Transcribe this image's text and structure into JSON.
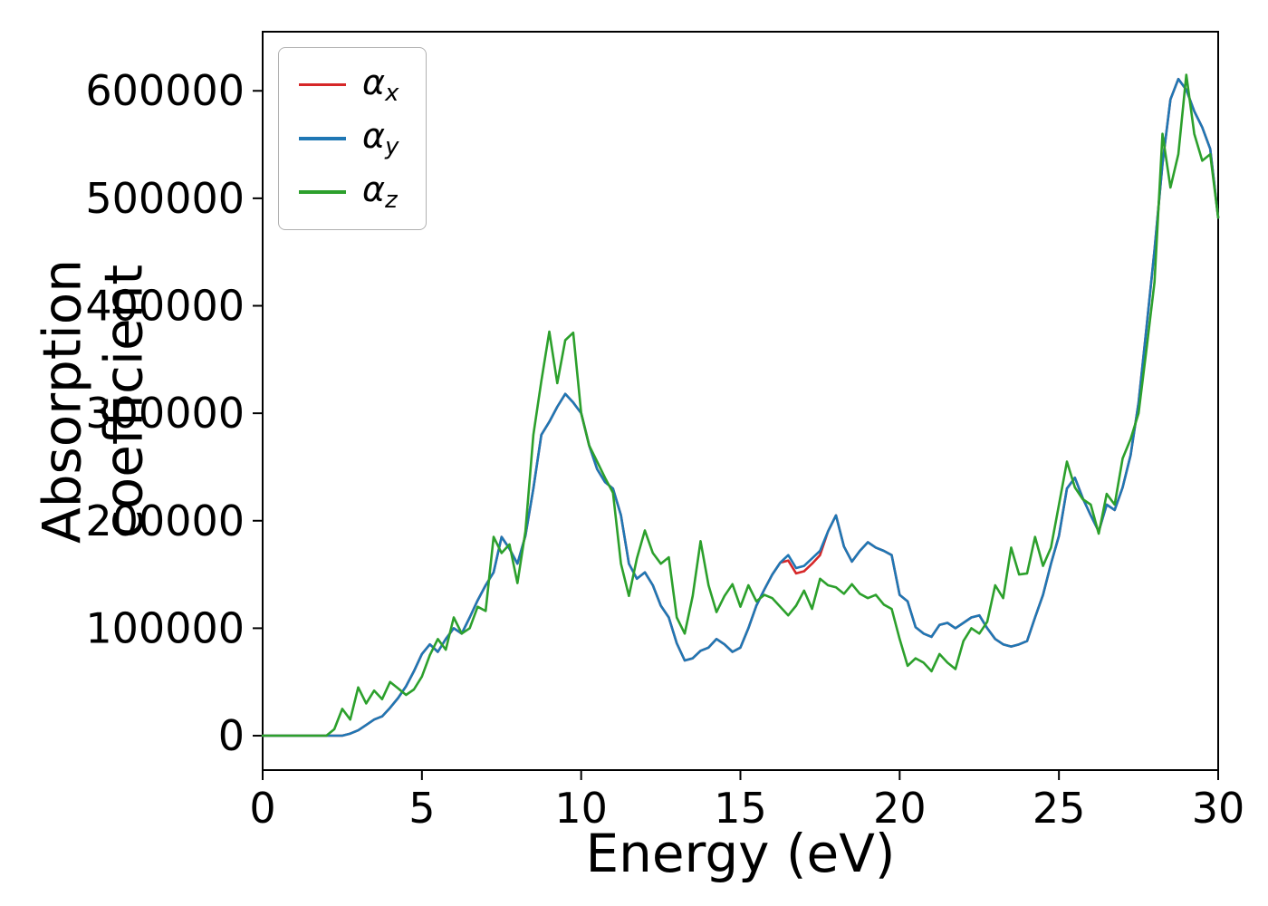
{
  "chart_data": {
    "type": "line",
    "title": "",
    "xlabel": "Energy (eV)",
    "ylabel": "Absorption coefficient",
    "xlim": [
      0,
      30
    ],
    "ylim": [
      -32000,
      655000
    ],
    "xticks": [
      0,
      5,
      10,
      15,
      20,
      25,
      30
    ],
    "yticks": [
      0,
      100000,
      200000,
      300000,
      400000,
      500000,
      600000
    ],
    "grid": false,
    "legend_position": "upper left",
    "value_scale": 1000,
    "x_start": 0,
    "x_step": 0.25,
    "series": [
      {
        "name": "alpha-x",
        "legend_base": "α",
        "legend_sub": "x",
        "color": "#d62728",
        "values_k": [
          0,
          0,
          0,
          0,
          0,
          0,
          0,
          0,
          0,
          0,
          0,
          2,
          5,
          10,
          15,
          18,
          26,
          35,
          46,
          60,
          76,
          85,
          78,
          90,
          100,
          95,
          110,
          126,
          140,
          152,
          185,
          174,
          160,
          186,
          230,
          280,
          292,
          306,
          318,
          310,
          300,
          270,
          248,
          236,
          230,
          205,
          160,
          146,
          152,
          140,
          121,
          110,
          86,
          70,
          72,
          79,
          82,
          90,
          85,
          78,
          82,
          100,
          121,
          136,
          150,
          161,
          163,
          151,
          153,
          160,
          168,
          190,
          205,
          176,
          162,
          172,
          180,
          175,
          172,
          168,
          131,
          125,
          101,
          95,
          92,
          103,
          105,
          100,
          105,
          110,
          112,
          100,
          90,
          85,
          83,
          85,
          88,
          110,
          131,
          160,
          186,
          230,
          240,
          221,
          205,
          190,
          215,
          210,
          231,
          261,
          310,
          380,
          452,
          532,
          592,
          611,
          601,
          581,
          566,
          546,
          482
        ]
      },
      {
        "name": "alpha-y",
        "legend_base": "α",
        "legend_sub": "y",
        "color": "#1f77b4",
        "values_k": [
          0,
          0,
          0,
          0,
          0,
          0,
          0,
          0,
          0,
          0,
          0,
          2,
          5,
          10,
          15,
          18,
          26,
          35,
          46,
          60,
          76,
          85,
          78,
          90,
          100,
          95,
          110,
          126,
          140,
          152,
          185,
          174,
          160,
          186,
          230,
          280,
          292,
          306,
          318,
          310,
          300,
          270,
          248,
          236,
          230,
          205,
          160,
          146,
          152,
          140,
          121,
          110,
          86,
          70,
          72,
          79,
          82,
          90,
          85,
          78,
          82,
          100,
          121,
          136,
          150,
          161,
          168,
          156,
          158,
          165,
          172,
          190,
          205,
          176,
          162,
          172,
          180,
          175,
          172,
          168,
          131,
          125,
          101,
          95,
          92,
          103,
          105,
          100,
          105,
          110,
          112,
          100,
          90,
          85,
          83,
          85,
          88,
          110,
          131,
          160,
          186,
          230,
          240,
          221,
          205,
          190,
          215,
          210,
          231,
          261,
          310,
          380,
          452,
          532,
          592,
          611,
          601,
          581,
          566,
          546,
          482
        ]
      },
      {
        "name": "alpha-z",
        "legend_base": "α",
        "legend_sub": "z",
        "color": "#2ca02c",
        "values_k": [
          0,
          0,
          0,
          0,
          0,
          0,
          0,
          0,
          0,
          6,
          25,
          15,
          45,
          30,
          42,
          34,
          50,
          44,
          38,
          43,
          55,
          75,
          90,
          80,
          110,
          95,
          100,
          120,
          116,
          185,
          170,
          178,
          142,
          190,
          280,
          330,
          376,
          328,
          368,
          375,
          300,
          270,
          255,
          240,
          226,
          160,
          130,
          165,
          191,
          170,
          160,
          166,
          110,
          95,
          130,
          181,
          140,
          115,
          130,
          141,
          120,
          140,
          125,
          131,
          128,
          120,
          112,
          121,
          135,
          118,
          146,
          140,
          138,
          132,
          141,
          132,
          128,
          131,
          122,
          118,
          90,
          65,
          72,
          68,
          60,
          76,
          68,
          62,
          88,
          100,
          95,
          106,
          140,
          128,
          175,
          150,
          151,
          185,
          158,
          175,
          215,
          255,
          231,
          220,
          215,
          188,
          225,
          215,
          258,
          276,
          300,
          360,
          422,
          560,
          510,
          541,
          615,
          560,
          535,
          541,
          482
        ]
      }
    ]
  }
}
